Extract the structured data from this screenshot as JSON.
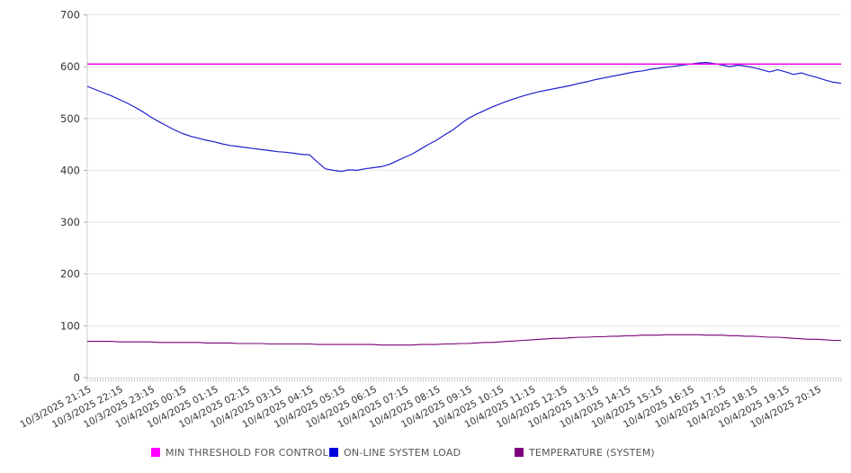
{
  "chart_data": {
    "type": "line",
    "title": "",
    "xlabel": "",
    "ylabel": "",
    "ylim": [
      0,
      700
    ],
    "y_ticks": [
      0,
      100,
      200,
      300,
      400,
      500,
      600,
      700
    ],
    "grid": "horizontal",
    "legend_position": "bottom",
    "x_minor_tick_count": 288,
    "categories": [
      "10/3/2025 21:15",
      "10/3/2025 22:15",
      "10/3/2025 23:15",
      "10/4/2025 00:15",
      "10/4/2025 01:15",
      "10/4/2025 02:15",
      "10/4/2025 03:15",
      "10/4/2025 04:15",
      "10/4/2025 05:15",
      "10/4/2025 06:15",
      "10/4/2025 07:15",
      "10/4/2025 08:15",
      "10/4/2025 09:15",
      "10/4/2025 10:15",
      "10/4/2025 11:15",
      "10/4/2025 12:15",
      "10/4/2025 13:15",
      "10/4/2025 14:15",
      "10/4/2025 15:15",
      "10/4/2025 16:15",
      "10/4/2025 17:15",
      "10/4/2025 18:15",
      "10/4/2025 19:15",
      "10/4/2025 20:15"
    ],
    "sample_interval_minutes": 15,
    "series": [
      {
        "name": "MIN THRESHOLD FOR CONTROL",
        "type": "constant-line",
        "color": "#ee00ee",
        "value": 605
      },
      {
        "name": "ON-LINE SYSTEM LOAD",
        "type": "line",
        "color": "#2020cc",
        "values": [
          562,
          556,
          550,
          544,
          537,
          530,
          522,
          513,
          503,
          494,
          486,
          478,
          471,
          466,
          462,
          458,
          455,
          451,
          448,
          446,
          444,
          442,
          440,
          438,
          436,
          435,
          433,
          431,
          430,
          416,
          403,
          400,
          398,
          401,
          400,
          403,
          405,
          407,
          411,
          418,
          425,
          432,
          441,
          450,
          458,
          468,
          477,
          489,
          500,
          508,
          515,
          522,
          528,
          534,
          539,
          544,
          548,
          552,
          555,
          558,
          561,
          564,
          568,
          571,
          575,
          578,
          581,
          584,
          587,
          590,
          592,
          595,
          597,
          599,
          601,
          603,
          605,
          607,
          608,
          606,
          603,
          600,
          603,
          601,
          598,
          594,
          590,
          594,
          590,
          585,
          588,
          583,
          579,
          574,
          570,
          568
        ]
      },
      {
        "name": "TEMPERATURE (SYSTEM)",
        "type": "line",
        "color": "#770077",
        "values": [
          70,
          70,
          70,
          70,
          69,
          69,
          69,
          69,
          69,
          68,
          68,
          68,
          68,
          68,
          68,
          67,
          67,
          67,
          67,
          66,
          66,
          66,
          66,
          65,
          65,
          65,
          65,
          65,
          65,
          64,
          64,
          64,
          64,
          64,
          64,
          64,
          64,
          63,
          63,
          63,
          63,
          63,
          64,
          64,
          64,
          65,
          65,
          66,
          66,
          67,
          68,
          68,
          69,
          70,
          71,
          72,
          73,
          74,
          75,
          76,
          76,
          77,
          78,
          78,
          79,
          79,
          80,
          80,
          81,
          81,
          82,
          82,
          82,
          83,
          83,
          83,
          83,
          83,
          82,
          82,
          82,
          81,
          81,
          80,
          80,
          79,
          78,
          78,
          77,
          76,
          75,
          74,
          74,
          73,
          72,
          72
        ]
      }
    ]
  },
  "legend": {
    "items": [
      {
        "label": "MIN THRESHOLD FOR CONTROL",
        "color": "#ff00ff"
      },
      {
        "label": "ON-LINE SYSTEM LOAD",
        "color": "#0000dd"
      },
      {
        "label": "TEMPERATURE (SYSTEM)",
        "color": "#800080"
      }
    ]
  },
  "colors": {
    "gridline": "#e4e4e4",
    "axis_line": "#cccccc",
    "tick": "#aaaaaa",
    "axis_text": "#333333",
    "legend_text": "#555555",
    "background": "#ffffff"
  }
}
